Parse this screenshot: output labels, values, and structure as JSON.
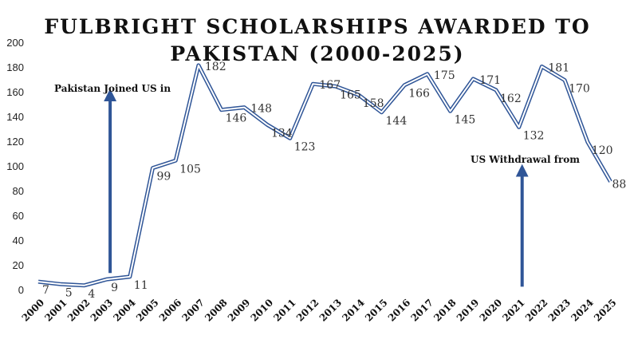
{
  "chart_data": {
    "type": "line",
    "title_line1": "FULBRIGHT SCHOLARSHIPS AWARDED TO",
    "title_line2": "PAKISTAN (2000-2025)",
    "xlabel": "",
    "ylabel": "",
    "ylim": [
      0,
      200
    ],
    "yticks": [
      "0",
      "20",
      "40",
      "60",
      "80",
      "100",
      "120",
      "140",
      "160",
      "180",
      "200"
    ],
    "grid": false,
    "categories": [
      "2000",
      "2001",
      "2002",
      "2003",
      "2004",
      "2005",
      "2006",
      "2007",
      "2008",
      "2009",
      "2010",
      "2011",
      "2012",
      "2013",
      "2014",
      "2015",
      "2016",
      "2017",
      "2018",
      "2019",
      "2020",
      "2021",
      "2022",
      "2023",
      "2024",
      "2025"
    ],
    "values": [
      7,
      5,
      4,
      9,
      11,
      99,
      105,
      182,
      146,
      148,
      134,
      123,
      167,
      165,
      158,
      144,
      166,
      175,
      145,
      171,
      162,
      132,
      181,
      170,
      120,
      88
    ],
    "line_color": "#2f5597",
    "annotations": [
      {
        "text": "Pakistan Joined US in",
        "arrow_year": "2003",
        "arrow_from": 14,
        "arrow_to": 158,
        "arrow_color": "#2f5597"
      },
      {
        "text": "US Withdrawal from",
        "arrow_year": "2021",
        "arrow_from": 3,
        "arrow_to": 97,
        "arrow_color": "#2f5597"
      }
    ]
  }
}
